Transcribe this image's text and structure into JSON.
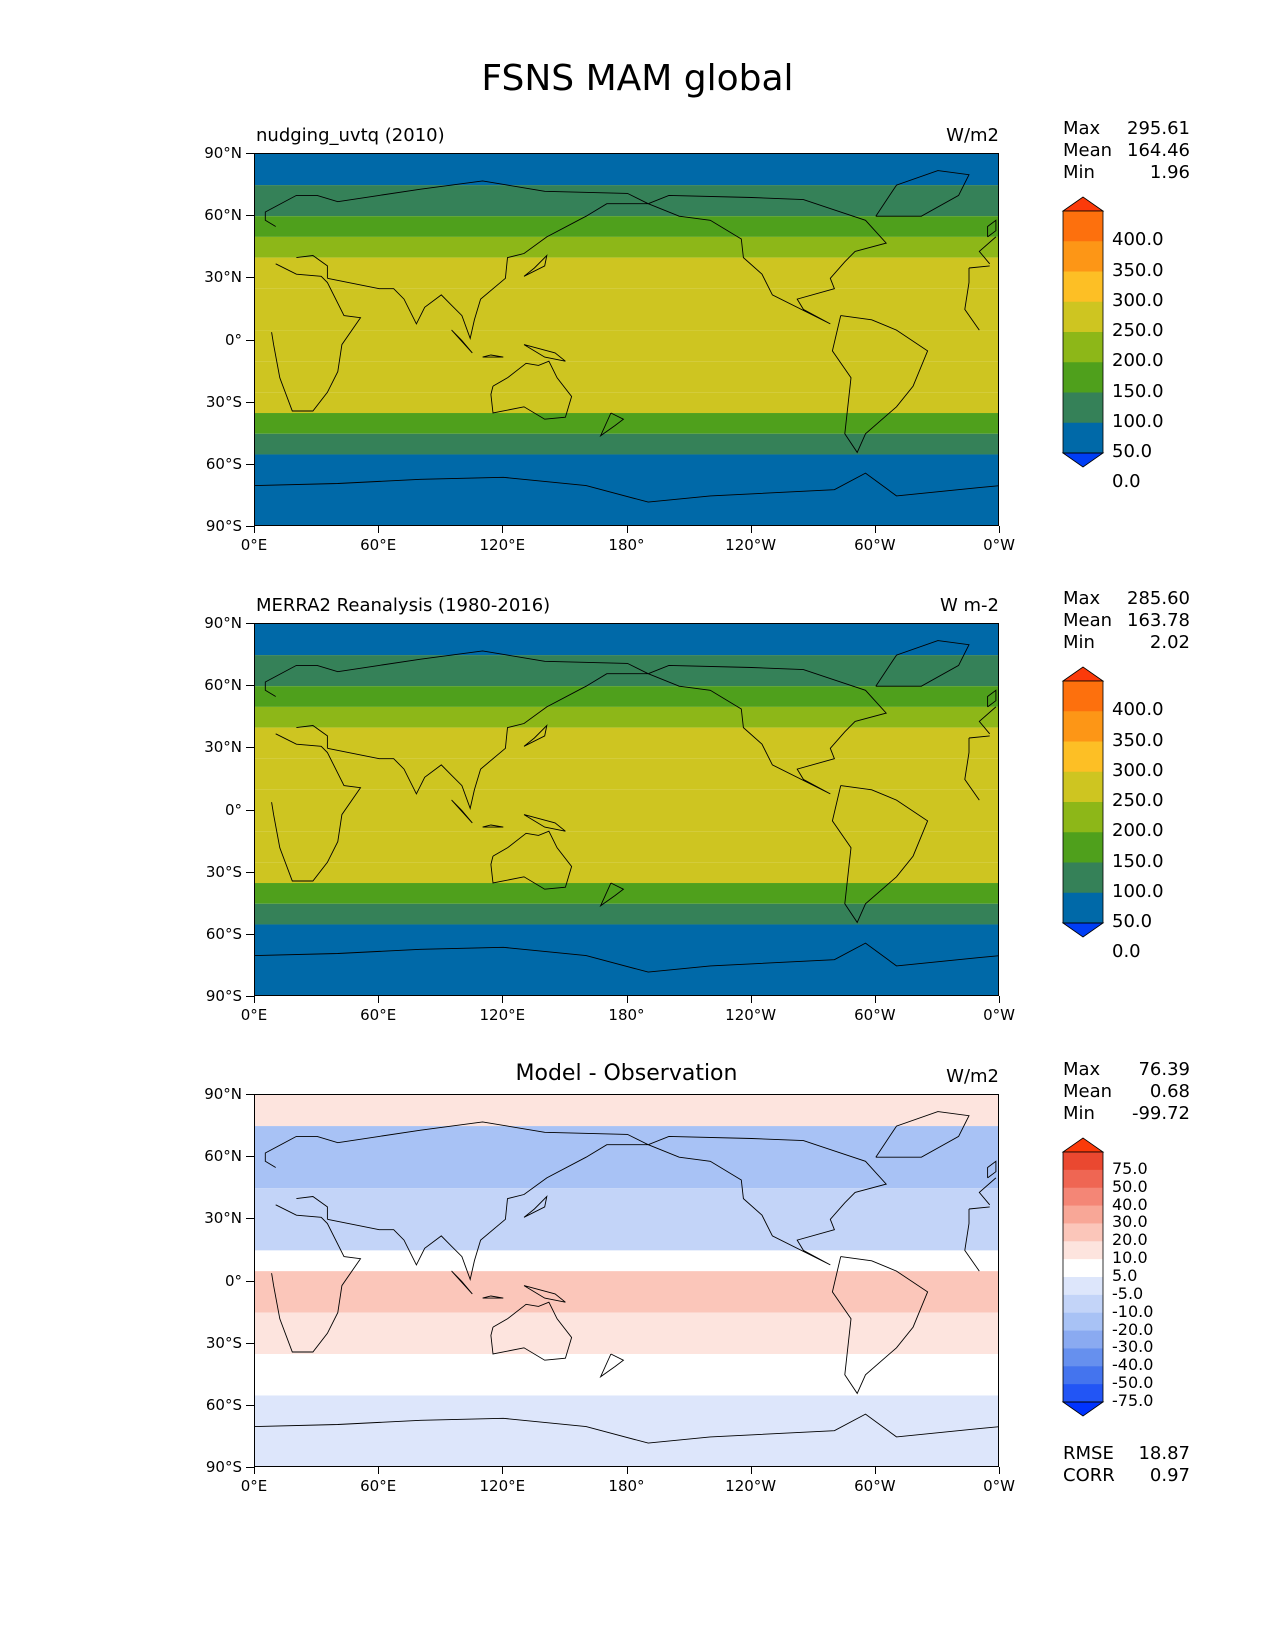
{
  "figure": {
    "title": "FSNS MAM global"
  },
  "colors": {
    "model_levels": [
      "#003ef5",
      "#0069a8",
      "#358158",
      "#4fa01c",
      "#8db718",
      "#cec521",
      "#fdbf25",
      "#fd9616",
      "#fd700d",
      "#fb3a0a"
    ],
    "diff_levels": [
      "#0033ff",
      "#2255f5",
      "#4474ee",
      "#6690ee",
      "#8aaaf1",
      "#a8c2f5",
      "#c3d4f8",
      "#dde6fb",
      "#ffffff",
      "#fde4de",
      "#fbc6ba",
      "#f8a797",
      "#f48676",
      "#ef6653",
      "#ea4830",
      "#fb3a0a"
    ]
  },
  "axes": {
    "yticks": [
      "90°N",
      "60°N",
      "30°N",
      "0°",
      "30°S",
      "60°S",
      "90°S"
    ],
    "xticks": [
      "0°E",
      "60°E",
      "120°E",
      "180°",
      "120°W",
      "60°W",
      "0°W"
    ]
  },
  "panels": [
    {
      "id": "test",
      "left_title": "nudging_uvtq (2010)",
      "center_title": "",
      "units": "W/m2",
      "stats": [
        {
          "label": "Max",
          "value": "295.61"
        },
        {
          "label": "Mean",
          "value": "164.46"
        },
        {
          "label": "Min",
          "value": "1.96"
        }
      ],
      "colorbar_labels": [
        "400.0",
        "350.0",
        "300.0",
        "250.0",
        "200.0",
        "150.0",
        "100.0",
        "50.0",
        "0.0"
      ],
      "extra_stats": []
    },
    {
      "id": "reference",
      "left_title": "MERRA2 Reanalysis (1980-2016)",
      "center_title": "",
      "units": "W m-2",
      "stats": [
        {
          "label": "Max",
          "value": "285.60"
        },
        {
          "label": "Mean",
          "value": "163.78"
        },
        {
          "label": "Min",
          "value": "2.02"
        }
      ],
      "colorbar_labels": [
        "400.0",
        "350.0",
        "300.0",
        "250.0",
        "200.0",
        "150.0",
        "100.0",
        "50.0",
        "0.0"
      ],
      "extra_stats": []
    },
    {
      "id": "difference",
      "left_title": "",
      "center_title": "Model - Observation",
      "units": "W/m2",
      "stats": [
        {
          "label": "Max",
          "value": "76.39"
        },
        {
          "label": "Mean",
          "value": "0.68"
        },
        {
          "label": "Min",
          "value": "-99.72"
        }
      ],
      "colorbar_labels": [
        "75.0",
        "50.0",
        "40.0",
        "30.0",
        "20.0",
        "10.0",
        "5.0",
        "-5.0",
        "-10.0",
        "-20.0",
        "-30.0",
        "-40.0",
        "-50.0",
        "-75.0"
      ],
      "extra_stats": [
        {
          "label": "RMSE",
          "value": "18.87"
        },
        {
          "label": "CORR",
          "value": "0.97"
        }
      ]
    }
  ],
  "chart_data": [
    {
      "type": "heatmap",
      "title": "nudging_uvtq (2010)",
      "units": "W/m2",
      "x_range": [
        0,
        360
      ],
      "y_range": [
        -90,
        90
      ],
      "levels": [
        0,
        50,
        100,
        150,
        200,
        250,
        300,
        350,
        400
      ],
      "extend": "both",
      "zonal_bands": [
        {
          "lat": [
            75,
            90
          ],
          "value": 30
        },
        {
          "lat": [
            60,
            75
          ],
          "value": 90
        },
        {
          "lat": [
            50,
            60
          ],
          "value": 120
        },
        {
          "lat": [
            40,
            50
          ],
          "value": 170
        },
        {
          "lat": [
            25,
            40
          ],
          "value": 215
        },
        {
          "lat": [
            5,
            25
          ],
          "value": 240
        },
        {
          "lat": [
            -10,
            5
          ],
          "value": 230
        },
        {
          "lat": [
            -25,
            -10
          ],
          "value": 225
        },
        {
          "lat": [
            -35,
            -25
          ],
          "value": 200
        },
        {
          "lat": [
            -45,
            -35
          ],
          "value": 140
        },
        {
          "lat": [
            -55,
            -45
          ],
          "value": 90
        },
        {
          "lat": [
            -90,
            -55
          ],
          "value": 30
        }
      ],
      "stats": {
        "max": 295.61,
        "mean": 164.46,
        "min": 1.96
      }
    },
    {
      "type": "heatmap",
      "title": "MERRA2 Reanalysis (1980-2016)",
      "units": "W m-2",
      "x_range": [
        0,
        360
      ],
      "y_range": [
        -90,
        90
      ],
      "levels": [
        0,
        50,
        100,
        150,
        200,
        250,
        300,
        350,
        400
      ],
      "extend": "both",
      "zonal_bands": [
        {
          "lat": [
            75,
            90
          ],
          "value": 30
        },
        {
          "lat": [
            60,
            75
          ],
          "value": 90
        },
        {
          "lat": [
            50,
            60
          ],
          "value": 130
        },
        {
          "lat": [
            40,
            50
          ],
          "value": 170
        },
        {
          "lat": [
            25,
            40
          ],
          "value": 215
        },
        {
          "lat": [
            10,
            25
          ],
          "value": 245
        },
        {
          "lat": [
            -10,
            10
          ],
          "value": 210
        },
        {
          "lat": [
            -25,
            -10
          ],
          "value": 225
        },
        {
          "lat": [
            -35,
            -25
          ],
          "value": 200
        },
        {
          "lat": [
            -45,
            -35
          ],
          "value": 140
        },
        {
          "lat": [
            -55,
            -45
          ],
          "value": 90
        },
        {
          "lat": [
            -90,
            -55
          ],
          "value": 30
        }
      ],
      "stats": {
        "max": 285.6,
        "mean": 163.78,
        "min": 2.02
      }
    },
    {
      "type": "heatmap",
      "title": "Model - Observation",
      "units": "W/m2",
      "x_range": [
        0,
        360
      ],
      "y_range": [
        -90,
        90
      ],
      "levels": [
        -75,
        -50,
        -40,
        -30,
        -20,
        -10,
        -5,
        5,
        10,
        20,
        30,
        40,
        50,
        75
      ],
      "extend": "both",
      "zonal_bands": [
        {
          "lat": [
            75,
            90
          ],
          "value": 12
        },
        {
          "lat": [
            45,
            75
          ],
          "value": -15
        },
        {
          "lat": [
            15,
            45
          ],
          "value": -8
        },
        {
          "lat": [
            5,
            15
          ],
          "value": 8
        },
        {
          "lat": [
            -15,
            5
          ],
          "value": 25
        },
        {
          "lat": [
            -35,
            -15
          ],
          "value": 12
        },
        {
          "lat": [
            -55,
            -35
          ],
          "value": 6
        },
        {
          "lat": [
            -90,
            -55
          ],
          "value": 0
        }
      ],
      "stats": {
        "max": 76.39,
        "mean": 0.68,
        "min": -99.72,
        "rmse": 18.87,
        "corr": 0.97
      }
    }
  ]
}
